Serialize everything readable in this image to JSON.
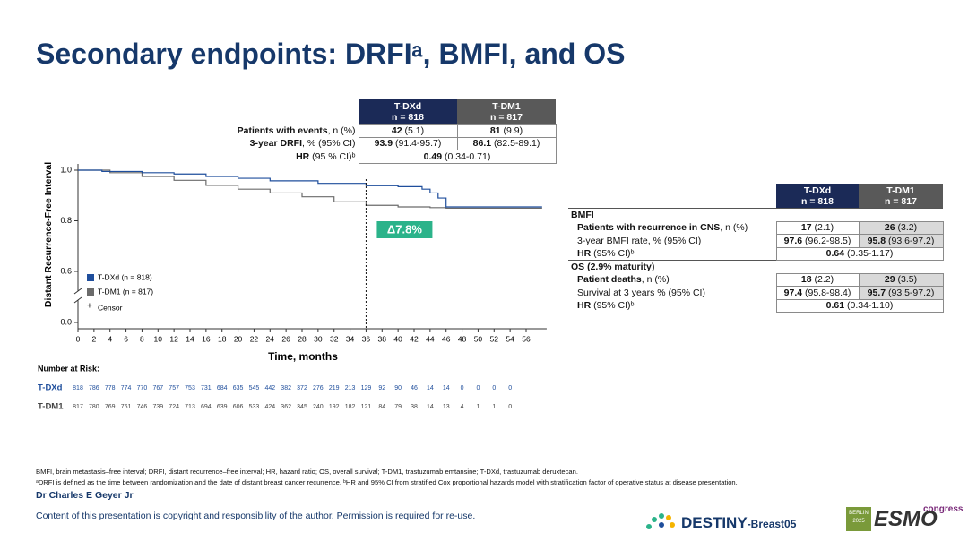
{
  "title": "Secondary endpoints: DRFIᵃ, BMFI, and OS",
  "chart_data": {
    "type": "line",
    "step": true,
    "y_label": "Distant Recurrence-Free Interval",
    "x_label": "Time, months",
    "xlim": [
      0,
      57
    ],
    "xticks": [
      0,
      2,
      4,
      6,
      8,
      10,
      12,
      14,
      16,
      18,
      20,
      22,
      24,
      26,
      28,
      30,
      32,
      34,
      36,
      38,
      40,
      42,
      44,
      46,
      48,
      50,
      52,
      54,
      56
    ],
    "ylim": [
      0,
      1.0
    ],
    "y_axis_break": [
      0,
      0.6
    ],
    "yticks": [
      {
        "value": 0,
        "label": "0.0"
      },
      {
        "value": 0.6,
        "label": "0.6"
      },
      {
        "value": 0.8,
        "label": "0.8"
      },
      {
        "value": 1.0,
        "label": "1.0"
      }
    ],
    "series": [
      {
        "name": "T-DXd (n = 818)",
        "color": "#1f4e9c",
        "x": [
          0,
          3,
          8,
          12,
          16,
          20,
          24,
          30,
          36,
          40,
          43,
          44,
          45,
          46,
          58
        ],
        "values": [
          1.0,
          0.995,
          0.99,
          0.985,
          0.975,
          0.968,
          0.958,
          0.948,
          0.939,
          0.935,
          0.925,
          0.91,
          0.89,
          0.855,
          0.855
        ]
      },
      {
        "name": "T-DM1 (n = 817)",
        "color": "#6b6b6b",
        "x": [
          0,
          4,
          8,
          12,
          16,
          20,
          24,
          28,
          32,
          36,
          40,
          44,
          46,
          58
        ],
        "values": [
          1.0,
          0.99,
          0.975,
          0.96,
          0.94,
          0.925,
          0.91,
          0.895,
          0.875,
          0.861,
          0.855,
          0.852,
          0.85,
          0.85
        ]
      }
    ],
    "censor_label": "Censor",
    "annotation": {
      "text": "Δ7.8%",
      "x": 36,
      "color": "#2bb38a"
    }
  },
  "risk_table": {
    "title": "Number at Risk:",
    "x": [
      0,
      2,
      4,
      6,
      8,
      10,
      12,
      14,
      16,
      18,
      20,
      22,
      24,
      26,
      28,
      30,
      32,
      34,
      36,
      38,
      40,
      42,
      44,
      46,
      48,
      50,
      52,
      54
    ],
    "rows": [
      {
        "name": "T-DXd",
        "color": "#1f4e9c",
        "values": [
          818,
          786,
          778,
          774,
          770,
          767,
          757,
          753,
          731,
          684,
          635,
          545,
          442,
          382,
          372,
          276,
          219,
          213,
          129,
          92,
          90,
          46,
          14,
          14,
          0,
          0,
          0,
          0
        ]
      },
      {
        "name": "T-DM1",
        "color": "#444444",
        "values": [
          817,
          780,
          769,
          761,
          746,
          739,
          724,
          713,
          694,
          639,
          606,
          533,
          424,
          362,
          345,
          240,
          192,
          182,
          121,
          84,
          79,
          38,
          14,
          13,
          4,
          1,
          1,
          0
        ]
      }
    ]
  },
  "drfi_table": {
    "headers": [
      [
        "T-DXd",
        "n = 818"
      ],
      [
        "T-DM1",
        "n = 817"
      ]
    ],
    "rows": [
      {
        "label": [
          {
            "text": "Patients with events",
            "bold": true
          },
          {
            "text": ", n (%)"
          }
        ],
        "cells": [
          [
            {
              "text": "42",
              "bold": true
            },
            {
              "text": " (5.1)"
            }
          ],
          [
            {
              "text": "81",
              "bold": true
            },
            {
              "text": " (9.9)"
            }
          ]
        ]
      },
      {
        "label": [
          {
            "text": "3-year DRFI",
            "bold": true
          },
          {
            "text": ", % (95% CI)"
          }
        ],
        "cells": [
          [
            {
              "text": "93.9",
              "bold": true
            },
            {
              "text": " (91.4-95.7)"
            }
          ],
          [
            {
              "text": "86.1",
              "bold": true
            },
            {
              "text": " (82.5-89.1)"
            }
          ]
        ]
      },
      {
        "label": [
          {
            "text": "HR",
            "bold": true
          },
          {
            "text": " (95 % CI)ᵇ"
          }
        ],
        "span": [
          {
            "text": "0.49",
            "bold": true
          },
          {
            "text": " (0.34-0.71)"
          }
        ]
      }
    ]
  },
  "cns_table": {
    "headers": [
      [
        "T-DXd",
        "n = 818"
      ],
      [
        "T-DM1",
        "n = 817"
      ]
    ],
    "rows": [
      {
        "section": "BMFI"
      },
      {
        "label": [
          {
            "text": "Patients with recurrence in CNS",
            "bold": true
          },
          {
            "text": ", n (%)"
          }
        ],
        "cells": [
          [
            {
              "text": "17",
              "bold": true
            },
            {
              "text": " (2.1)"
            }
          ],
          [
            {
              "text": "26",
              "bold": true
            },
            {
              "text": " (3.2)"
            }
          ]
        ]
      },
      {
        "label": [
          {
            "text": "3-year BMFI rate, % (95% CI)"
          }
        ],
        "cells": [
          [
            {
              "text": "97.6",
              "bold": true
            },
            {
              "text": " (96.2-98.5)"
            }
          ],
          [
            {
              "text": "95.8",
              "bold": true
            },
            {
              "text": " (93.6-97.2)"
            }
          ]
        ]
      },
      {
        "label": [
          {
            "text": "HR",
            "bold": true
          },
          {
            "text": " (95% CI)ᵇ"
          }
        ],
        "span": [
          {
            "text": "0.64",
            "bold": true
          },
          {
            "text": " (0.35-1.17)"
          }
        ]
      },
      {
        "section": "OS (2.9% maturity)"
      },
      {
        "label": [
          {
            "text": "Patient deaths",
            "bold": true
          },
          {
            "text": ", n (%)"
          }
        ],
        "cells": [
          [
            {
              "text": "18",
              "bold": true
            },
            {
              "text": " (2.2)"
            }
          ],
          [
            {
              "text": "29",
              "bold": true
            },
            {
              "text": " (3.5)"
            }
          ]
        ]
      },
      {
        "label": [
          {
            "text": "Survival at 3 years % (95% CI)"
          }
        ],
        "cells": [
          [
            {
              "text": "97.4",
              "bold": true
            },
            {
              "text": " (95.8-98.4)"
            }
          ],
          [
            {
              "text": "95.7",
              "bold": true
            },
            {
              "text": " (93.5-97.2)"
            }
          ]
        ]
      },
      {
        "label": [
          {
            "text": "HR",
            "bold": true
          },
          {
            "text": " (95% CI)ᵇ"
          }
        ],
        "span": [
          {
            "text": "0.61",
            "bold": true
          },
          {
            "text": " (0.34-1.10)"
          }
        ]
      }
    ]
  },
  "footnotes": [
    "BMFI, brain metastasis–free interval; DRFI, distant recurrence–free interval; HR, hazard ratio; OS, overall survival; T-DM1, trastuzumab emtansine; T-DXd, trastuzumab deruxtecan.",
    "ᵃDRFI is defined as the time between randomization and the date of distant breast cancer recurrence. ᵇHR and 95% CI from stratified Cox proportional hazards model with stratification factor of operative status at disease presentation."
  ],
  "presenter": "Dr Charles E Geyer Jr",
  "copyright": "Content of this presentation is copyright and responsibility of the author. Permission is required for re-use.",
  "logo": {
    "trial": "DESTINY",
    "trial_suffix": "-Breast05",
    "city": "BERLIN",
    "year": "2025",
    "congress": "ESMO",
    "congress_suffix": "congress"
  }
}
